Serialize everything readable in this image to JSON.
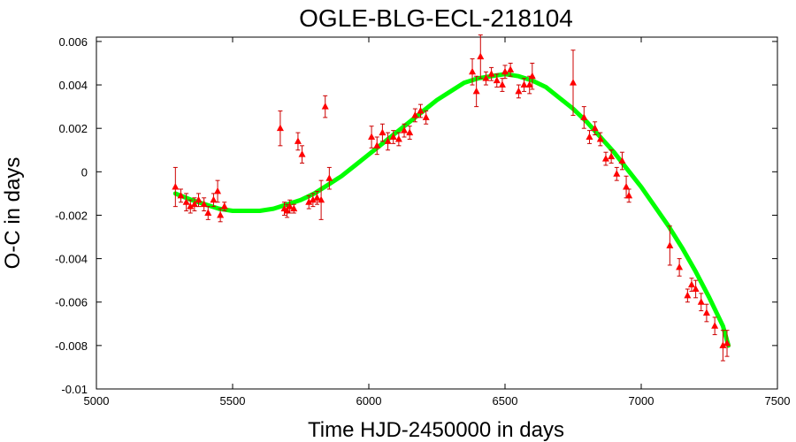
{
  "chart_data": {
    "type": "scatter",
    "title": "OGLE-BLG-ECL-218104",
    "xlabel": "Time HJD-2450000 in days",
    "ylabel": "O-C in days",
    "xlim": [
      5000,
      7500
    ],
    "ylim": [
      -0.01,
      0.0062
    ],
    "xticks": [
      5000,
      5500,
      6000,
      6500,
      7000,
      7500
    ],
    "xtick_labels": [
      "5000",
      "5500",
      "6000",
      "6500",
      "7000",
      "7500"
    ],
    "yticks": [
      -0.01,
      -0.008,
      -0.006,
      -0.004,
      -0.002,
      0,
      0.002,
      0.004,
      0.006
    ],
    "ytick_labels": [
      "-0.01",
      "-0.008",
      "-0.006",
      "-0.004",
      "-0.002",
      "0",
      "0.002",
      "0.004",
      "0.006"
    ],
    "grid": false,
    "legend": "none",
    "colors": {
      "points": "#ff0000",
      "errorbars": "#cc0000",
      "fit": "#00ff00",
      "frame": "#000000"
    },
    "series": [
      {
        "type": "scatter-errorbars",
        "points": [
          {
            "x": 5290,
            "y": -0.0007,
            "err": 0.0009
          },
          {
            "x": 5310,
            "y": -0.0011,
            "err": 0.0003
          },
          {
            "x": 5330,
            "y": -0.0014,
            "err": 0.0004
          },
          {
            "x": 5345,
            "y": -0.0016,
            "err": 0.0003
          },
          {
            "x": 5360,
            "y": -0.0015,
            "err": 0.0003
          },
          {
            "x": 5375,
            "y": -0.0013,
            "err": 0.0003
          },
          {
            "x": 5395,
            "y": -0.0015,
            "err": 0.0003
          },
          {
            "x": 5410,
            "y": -0.0019,
            "err": 0.0003
          },
          {
            "x": 5430,
            "y": -0.0013,
            "err": 0.0003
          },
          {
            "x": 5445,
            "y": -0.0009,
            "err": 0.0005
          },
          {
            "x": 5455,
            "y": -0.002,
            "err": 0.0003
          },
          {
            "x": 5470,
            "y": -0.0016,
            "err": 0.0002
          },
          {
            "x": 5675,
            "y": 0.002,
            "err": 0.0008
          },
          {
            "x": 5690,
            "y": -0.0017,
            "err": 0.0003
          },
          {
            "x": 5700,
            "y": -0.0018,
            "err": 0.0003
          },
          {
            "x": 5710,
            "y": -0.0016,
            "err": 0.0003
          },
          {
            "x": 5725,
            "y": -0.0017,
            "err": 0.0002
          },
          {
            "x": 5740,
            "y": 0.0014,
            "err": 0.0004
          },
          {
            "x": 5755,
            "y": 0.0008,
            "err": 0.0004
          },
          {
            "x": 5780,
            "y": -0.0014,
            "err": 0.0003
          },
          {
            "x": 5795,
            "y": -0.0013,
            "err": 0.0003
          },
          {
            "x": 5810,
            "y": -0.0012,
            "err": 0.0003
          },
          {
            "x": 5825,
            "y": -0.0013,
            "err": 0.0009
          },
          {
            "x": 5840,
            "y": 0.003,
            "err": 0.0005
          },
          {
            "x": 5855,
            "y": -0.0003,
            "err": 0.0005
          },
          {
            "x": 6010,
            "y": 0.0016,
            "err": 0.0005
          },
          {
            "x": 6030,
            "y": 0.0012,
            "err": 0.0004
          },
          {
            "x": 6050,
            "y": 0.0018,
            "err": 0.0004
          },
          {
            "x": 6070,
            "y": 0.0014,
            "err": 0.0004
          },
          {
            "x": 6090,
            "y": 0.0016,
            "err": 0.0003
          },
          {
            "x": 6110,
            "y": 0.0015,
            "err": 0.0003
          },
          {
            "x": 6130,
            "y": 0.0019,
            "err": 0.0003
          },
          {
            "x": 6150,
            "y": 0.0018,
            "err": 0.0003
          },
          {
            "x": 6170,
            "y": 0.0026,
            "err": 0.0003
          },
          {
            "x": 6190,
            "y": 0.0028,
            "err": 0.0003
          },
          {
            "x": 6210,
            "y": 0.0025,
            "err": 0.0003
          },
          {
            "x": 6380,
            "y": 0.0046,
            "err": 0.0006
          },
          {
            "x": 6395,
            "y": 0.0037,
            "err": 0.0007
          },
          {
            "x": 6410,
            "y": 0.0053,
            "err": 0.001
          },
          {
            "x": 6430,
            "y": 0.0043,
            "err": 0.0003
          },
          {
            "x": 6450,
            "y": 0.0045,
            "err": 0.0003
          },
          {
            "x": 6470,
            "y": 0.0042,
            "err": 0.0003
          },
          {
            "x": 6490,
            "y": 0.004,
            "err": 0.0003
          },
          {
            "x": 6500,
            "y": 0.0046,
            "err": 0.0003
          },
          {
            "x": 6520,
            "y": 0.0047,
            "err": 0.0003
          },
          {
            "x": 6550,
            "y": 0.0037,
            "err": 0.0003
          },
          {
            "x": 6570,
            "y": 0.004,
            "err": 0.0003
          },
          {
            "x": 6590,
            "y": 0.004,
            "err": 0.0004
          },
          {
            "x": 6600,
            "y": 0.0044,
            "err": 0.0006
          },
          {
            "x": 6750,
            "y": 0.0041,
            "err": 0.0015
          },
          {
            "x": 6790,
            "y": 0.0025,
            "err": 0.0005
          },
          {
            "x": 6810,
            "y": 0.0016,
            "err": 0.0003
          },
          {
            "x": 6830,
            "y": 0.002,
            "err": 0.0003
          },
          {
            "x": 6850,
            "y": 0.0015,
            "err": 0.0003
          },
          {
            "x": 6870,
            "y": 0.0006,
            "err": 0.0003
          },
          {
            "x": 6890,
            "y": 0.0007,
            "err": 0.0003
          },
          {
            "x": 6910,
            "y": -0.0001,
            "err": 0.0003
          },
          {
            "x": 6930,
            "y": 0.0005,
            "err": 0.0004
          },
          {
            "x": 6945,
            "y": -0.0007,
            "err": 0.0005
          },
          {
            "x": 6955,
            "y": -0.0011,
            "err": 0.0003
          },
          {
            "x": 7105,
            "y": -0.0034,
            "err": 0.0009
          },
          {
            "x": 7140,
            "y": -0.0044,
            "err": 0.0004
          },
          {
            "x": 7170,
            "y": -0.0057,
            "err": 0.0003
          },
          {
            "x": 7185,
            "y": -0.0052,
            "err": 0.0003
          },
          {
            "x": 7200,
            "y": -0.0054,
            "err": 0.0004
          },
          {
            "x": 7220,
            "y": -0.006,
            "err": 0.0004
          },
          {
            "x": 7240,
            "y": -0.0065,
            "err": 0.0004
          },
          {
            "x": 7270,
            "y": -0.0071,
            "err": 0.0004
          },
          {
            "x": 7300,
            "y": -0.008,
            "err": 0.0007
          },
          {
            "x": 7315,
            "y": -0.0079,
            "err": 0.0006
          }
        ]
      },
      {
        "type": "fit-curve",
        "x": [
          5290,
          5350,
          5400,
          5450,
          5500,
          5550,
          5600,
          5650,
          5700,
          5750,
          5800,
          5850,
          5900,
          5950,
          6000,
          6050,
          6100,
          6150,
          6200,
          6250,
          6300,
          6350,
          6400,
          6450,
          6500,
          6550,
          6600,
          6650,
          6700,
          6750,
          6800,
          6850,
          6900,
          6950,
          7000,
          7050,
          7100,
          7150,
          7200,
          7250,
          7300,
          7320
        ],
        "y": [
          -0.001,
          -0.0013,
          -0.0015,
          -0.0017,
          -0.0018,
          -0.0018,
          -0.0018,
          -0.0017,
          -0.0015,
          -0.0013,
          -0.001,
          -0.0006,
          -0.0002,
          0.0003,
          0.0008,
          0.0013,
          0.0018,
          0.0023,
          0.0028,
          0.0033,
          0.0037,
          0.0041,
          0.0043,
          0.0044,
          0.0045,
          0.0044,
          0.0042,
          0.0039,
          0.0034,
          0.0029,
          0.0023,
          0.0016,
          0.0009,
          0.0001,
          -0.0007,
          -0.0016,
          -0.0025,
          -0.0035,
          -0.0046,
          -0.0058,
          -0.0071,
          -0.008
        ]
      }
    ]
  }
}
